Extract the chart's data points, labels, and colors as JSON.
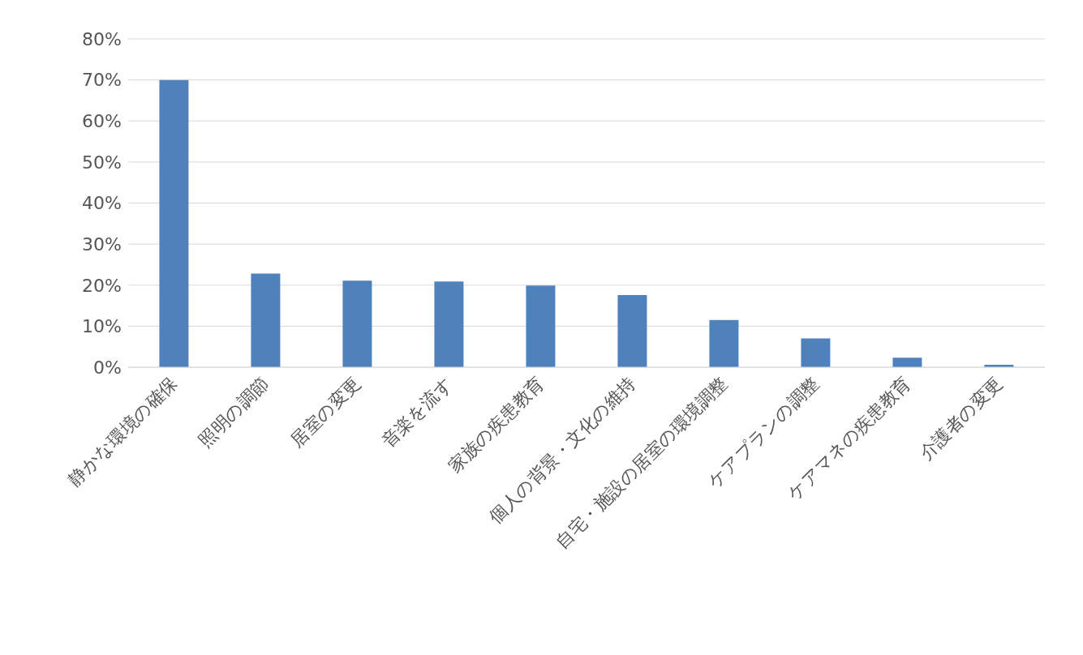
{
  "chart_data": {
    "type": "bar",
    "categories": [
      "静かな環境の確保",
      "照明の調節",
      "居室の変更",
      "音楽を流す",
      "家族の疾患教育",
      "個人の背景・文化の維持",
      "自宅・施設の居室の環境調整",
      "ケアプランの調整",
      "ケアマネの疾患教育",
      "介護者の変更"
    ],
    "values": [
      70,
      22.8,
      21.1,
      20.9,
      19.9,
      17.6,
      11.5,
      7,
      2.3,
      0.6
    ],
    "color": "#4f81bd",
    "ylim": [
      0,
      80
    ],
    "yticks": [
      {
        "value": 0,
        "label": "0%"
      },
      {
        "value": 10,
        "label": "10%"
      },
      {
        "value": 20,
        "label": "20%"
      },
      {
        "value": 30,
        "label": "30%"
      },
      {
        "value": 40,
        "label": "40%"
      },
      {
        "value": 50,
        "label": "50%"
      },
      {
        "value": 60,
        "label": "60%"
      },
      {
        "value": 70,
        "label": "70%"
      },
      {
        "value": 80,
        "label": "80%"
      }
    ],
    "grid": "y",
    "legend": false
  }
}
